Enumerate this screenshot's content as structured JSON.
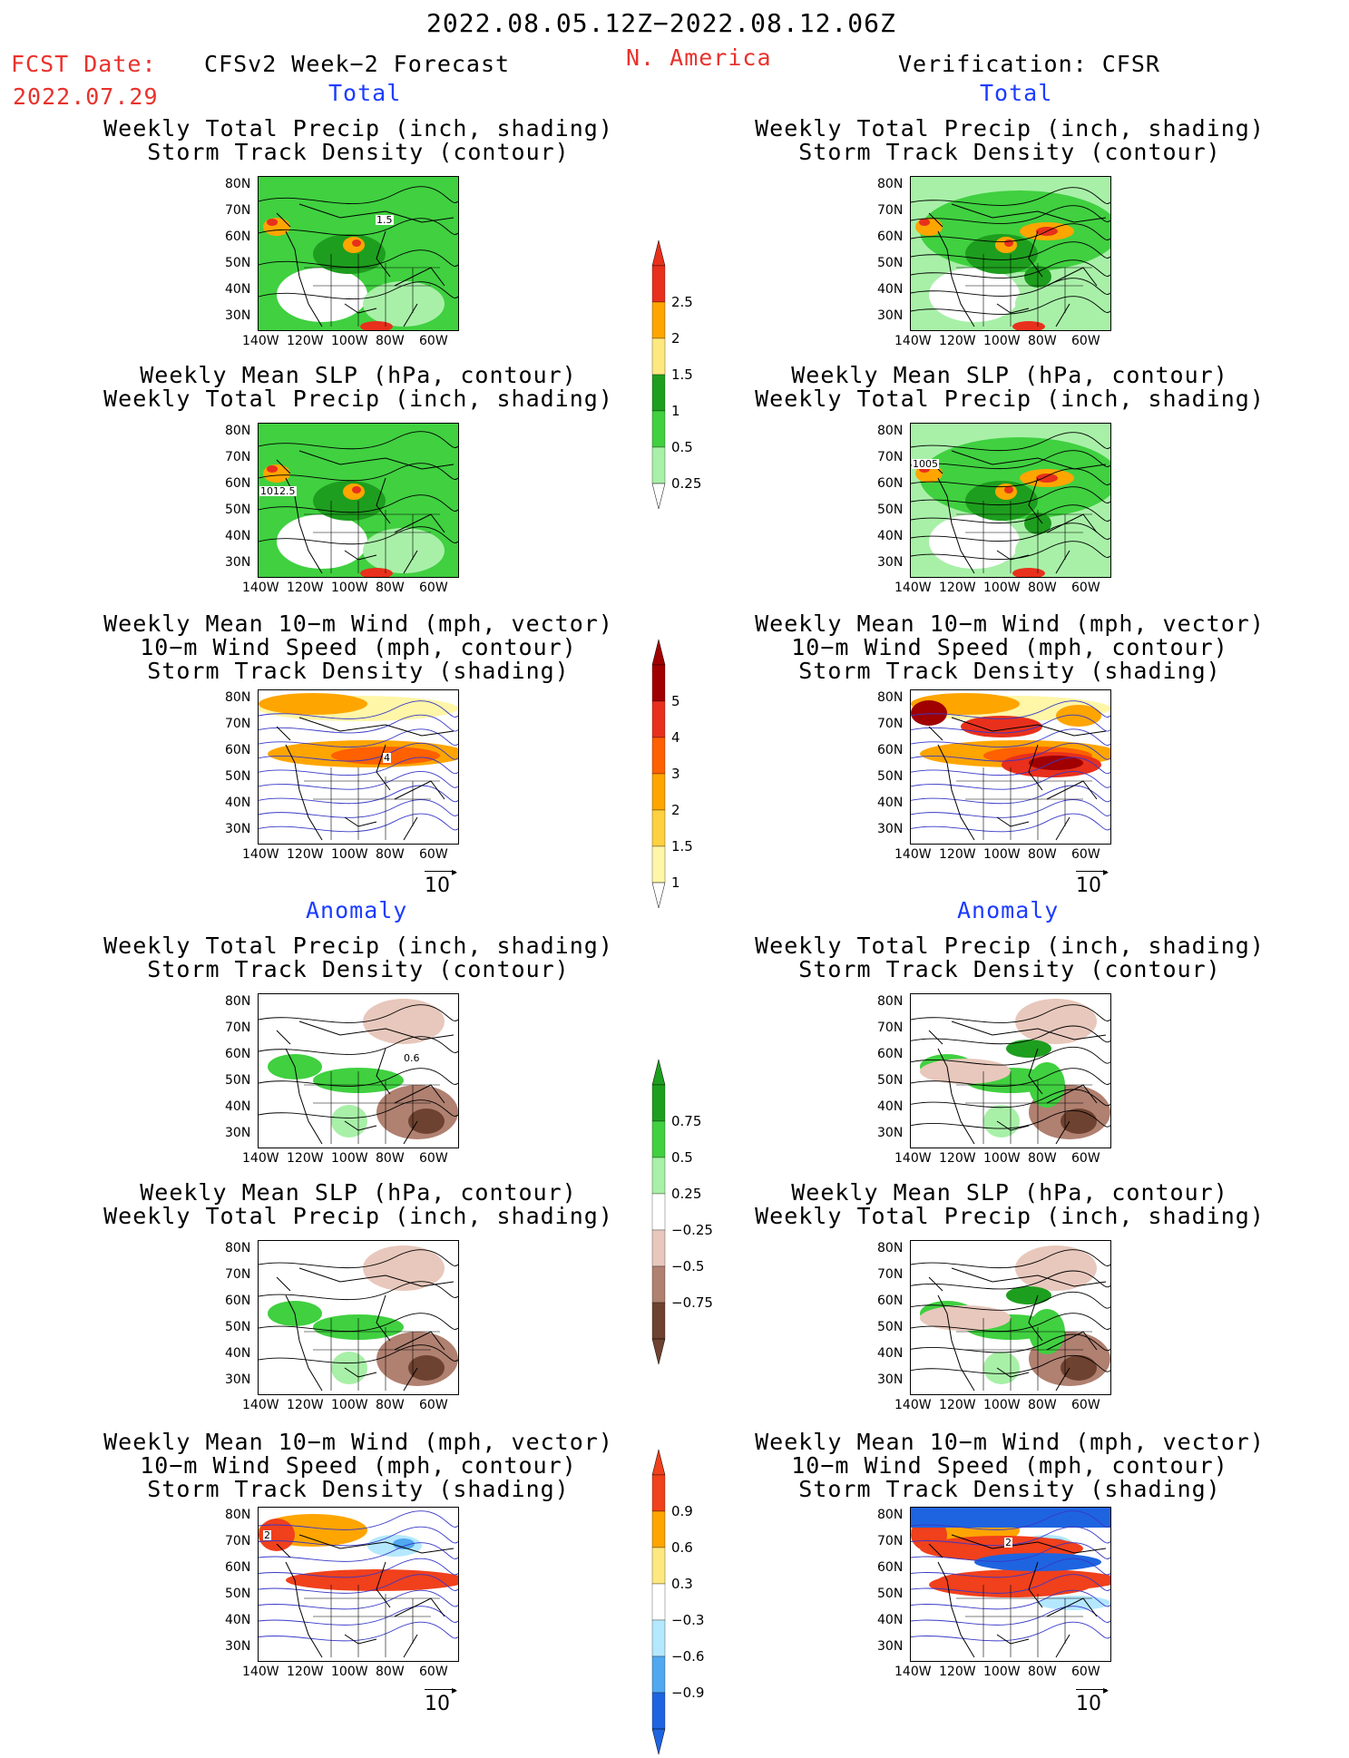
{
  "header": {
    "period": "2022.08.05.12Z−2022.08.12.06Z",
    "fcst_label": "FCST Date:",
    "fcst_date": "2022.07.29",
    "model": "CFSv2 Week−2 Forecast",
    "region": "N. America",
    "verification": "Verification: CFSR"
  },
  "sections": {
    "total": "Total",
    "anomaly": "Anomaly"
  },
  "panel_titles": {
    "precip_storm": [
      "Weekly Total Precip (inch, shading)",
      "Storm Track Density (contour)"
    ],
    "slp_precip": [
      "Weekly Mean SLP (hPa, contour)",
      "Weekly Total Precip (inch, shading)"
    ],
    "wind": [
      "Weekly Mean 10−m Wind (mph, vector)",
      "10−m Wind Speed (mph, contour)",
      "Storm Track Density (shading)"
    ]
  },
  "axes": {
    "lat_ticks": [
      "80N",
      "70N",
      "60N",
      "50N",
      "40N",
      "30N"
    ],
    "lon_ticks": [
      "140W",
      "120W",
      "100W",
      "80W",
      "60W"
    ]
  },
  "vector_ref": "10",
  "colorbars": {
    "precip_total": {
      "labels": [
        "2.5",
        "2",
        "1.5",
        "1",
        "0.5",
        "0.25"
      ],
      "colors": [
        "#e8301c",
        "#ffa500",
        "#ffe880",
        "#1e9e1e",
        "#40d040",
        "#a8f0a8"
      ]
    },
    "storm_total": {
      "labels": [
        "5",
        "4",
        "3",
        "2",
        "1.5",
        "1"
      ],
      "colors": [
        "#a00000",
        "#e8301c",
        "#ff6000",
        "#ffa500",
        "#ffd040",
        "#fff6a8"
      ]
    },
    "precip_anom": {
      "labels": [
        "0.75",
        "0.5",
        "0.25",
        "−0.25",
        "−0.5",
        "−0.75"
      ],
      "colors": [
        "#1e9e1e",
        "#40d040",
        "#a8f0a8",
        "#ffffff",
        "#e8c8bc",
        "#b08070",
        "#6e4230"
      ]
    },
    "storm_anom": {
      "labels": [
        "0.9",
        "0.6",
        "0.3",
        "−0.3",
        "−0.6",
        "−0.9"
      ],
      "colors": [
        "#f0401c",
        "#ffa500",
        "#ffe880",
        "#ffffff",
        "#b4e8ff",
        "#50a8f0",
        "#1e64e0"
      ]
    }
  },
  "contour_labels": {
    "fcst_precip_storm_total": "1.5",
    "fcst_slp_total": "1012.5",
    "obs_slp_total": "1005",
    "fcst_wind_total": "4",
    "fcst_precip_storm_anom": "0.6",
    "obs_wind_anom": "2",
    "fcst_wind_anom": "2"
  }
}
